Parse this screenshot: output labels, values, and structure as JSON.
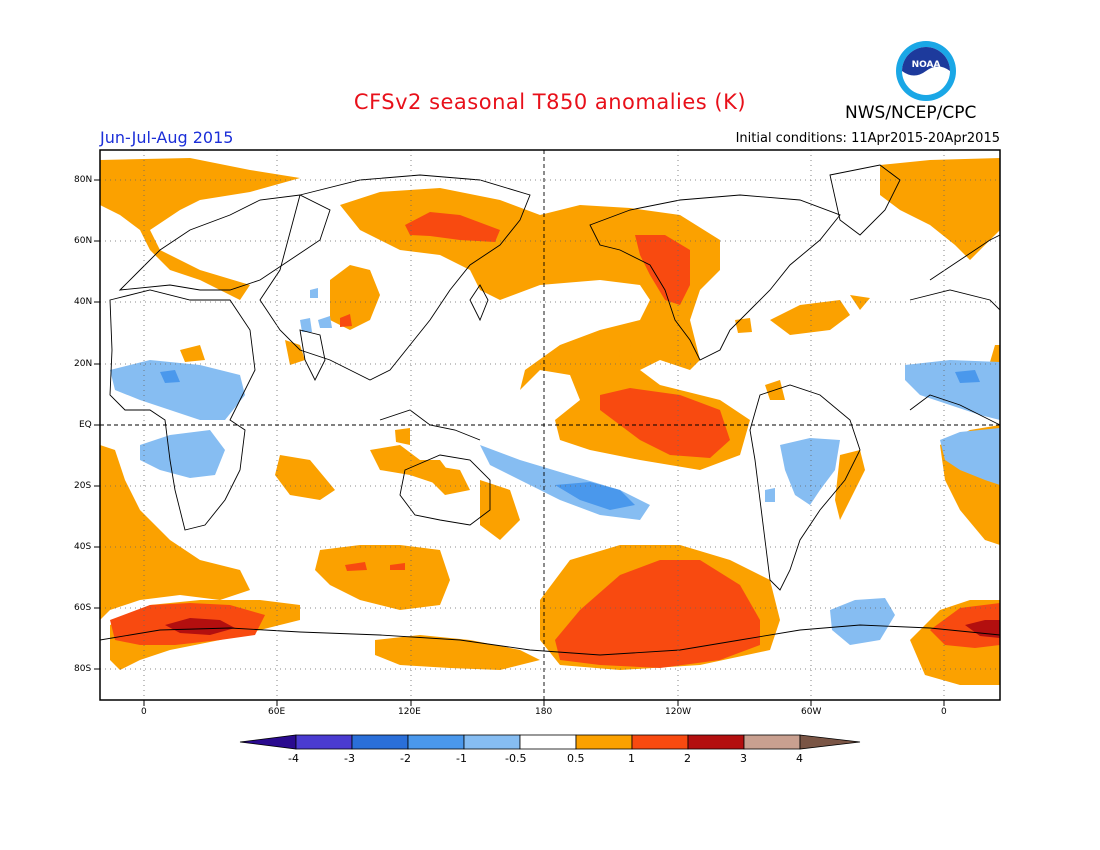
{
  "title": "CFSv2 seasonal T850 anomalies (K)",
  "period": "Jun-Jul-Aug 2015",
  "initial_conditions": "Initial conditions: 11Apr2015-20Apr2015",
  "agency": "NWS/NCEP/CPC",
  "logo_text": "NOAA",
  "lat_labels": [
    "80N",
    "60N",
    "40N",
    "20N",
    "EQ",
    "20S",
    "40S",
    "60S",
    "80S"
  ],
  "lon_labels": [
    "0",
    "60E",
    "120E",
    "180",
    "120W",
    "60W",
    "0"
  ],
  "colorbar_labels": [
    "-4",
    "-3",
    "-2",
    "-1",
    "-0.5",
    "0.5",
    "1",
    "2",
    "3",
    "4"
  ],
  "colors": {
    "neg4": "#2a0a8f",
    "neg3": "#4a3bd0",
    "neg2": "#2a6fd9",
    "neg1": "#4a98ec",
    "neg05": "#86bdf2",
    "neutral": "#ffffff",
    "pos05": "#fba100",
    "pos1": "#f84a10",
    "pos2": "#b30f0f",
    "pos3": "#a00000",
    "pos4": "#c9a090",
    "pos_over": "#7a5545"
  }
}
